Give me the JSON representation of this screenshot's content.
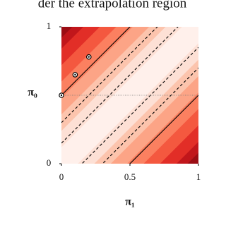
{
  "header_text": "der the extrapolation region",
  "chart_data": {
    "type": "contour",
    "xlabel": "π₁",
    "ylabel": "π₀",
    "xlim": [
      0,
      1
    ],
    "ylim": [
      0,
      1
    ],
    "xticks": [
      0,
      0.5,
      1
    ],
    "yticks": [
      0,
      1
    ],
    "levels": [
      0,
      0.12,
      0.24,
      0.36,
      0.48,
      0.6,
      0.72,
      0.84,
      0.92
    ],
    "level_colors": [
      "#fff0eb",
      "#fde0d5",
      "#fcc4ad",
      "#fca486",
      "#fb8060",
      "#f4583f",
      "#e22e27",
      "#c1161b",
      "#9b0d14"
    ],
    "contour_lines": [
      {
        "offset": 0.5,
        "style": "solid"
      },
      {
        "offset": 0.3,
        "style": "dashed"
      },
      {
        "offset": 0.15,
        "style": "dashed"
      },
      {
        "offset": -0.15,
        "style": "dashed"
      },
      {
        "offset": -0.3,
        "style": "dashed"
      },
      {
        "offset": -0.5,
        "style": "solid"
      }
    ],
    "hline": 0.5,
    "points": {
      "x": [
        0,
        0.1,
        0.2
      ],
      "y": [
        0.5,
        0.65,
        0.78
      ]
    }
  }
}
